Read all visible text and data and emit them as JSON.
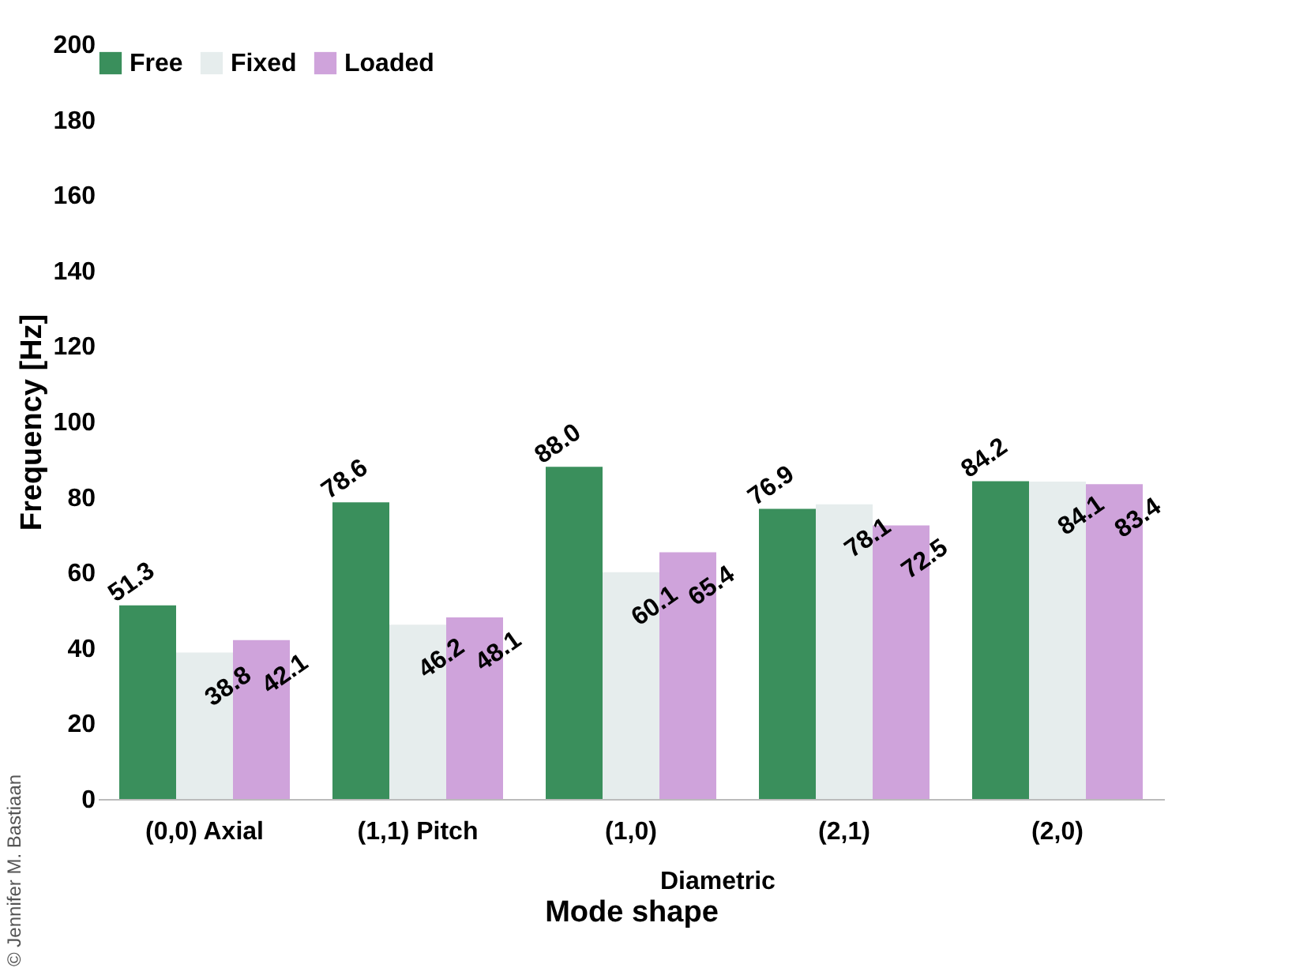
{
  "chart_data": {
    "type": "bar",
    "xlabel": "Mode shape",
    "ylabel": "Frequency [Hz]",
    "categories": [
      "(0,0) Axial",
      "(1,1) Pitch",
      "(1,0)",
      "(2,1)",
      "(2,0)"
    ],
    "series": [
      {
        "name": "Free",
        "color": "#3a8f5c",
        "values": [
          51.3,
          78.6,
          88.0,
          76.9,
          84.2
        ]
      },
      {
        "name": "Fixed",
        "color": "#e6eded",
        "values": [
          38.8,
          46.2,
          60.1,
          78.1,
          84.1
        ]
      },
      {
        "name": "Loaded",
        "color": "#cfa3db",
        "values": [
          42.1,
          48.1,
          65.4,
          72.5,
          83.4
        ]
      }
    ],
    "value_labels": [
      [
        "51.3",
        "78.6",
        "88.0",
        "76.9",
        "84.2"
      ],
      [
        "38.8",
        "46.2",
        "60.1",
        "78.1",
        "84.1"
      ],
      [
        "42.1",
        "48.1",
        "65.4",
        "72.5",
        "83.4"
      ]
    ],
    "ylim": [
      0,
      200
    ],
    "yticks": [
      0,
      20,
      40,
      60,
      80,
      100,
      120,
      140,
      160,
      180,
      200
    ],
    "grid": false,
    "legend": "top",
    "annotations": [
      "Diametric",
      "© Jennifer M. Bastiaan"
    ]
  }
}
